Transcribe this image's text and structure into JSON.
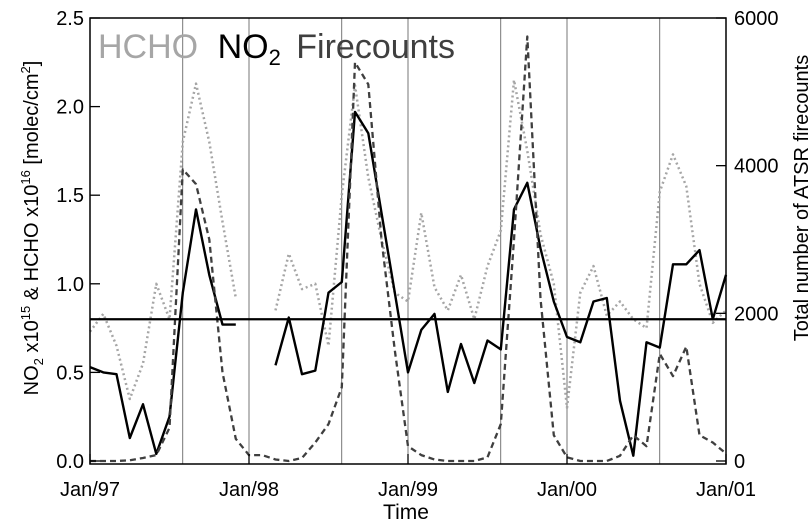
{
  "chart_data": {
    "type": "line",
    "legend": {
      "position": "top-left",
      "items": [
        {
          "text": "HCHO",
          "color": "#a6a6a6"
        },
        {
          "text": "NO",
          "sub": "2",
          "color": "#000000"
        },
        {
          "text": "Firecounts",
          "color": "#3f3f3f"
        }
      ]
    },
    "xlabel": "Time",
    "ylabel_left": {
      "p1": "NO",
      "s1": "2",
      "p2": " x10",
      "e1": "15",
      "p3": " &  HCHO x10",
      "e2": "16",
      "p4": " [molec/cm",
      "e3": "2",
      "p5": "]"
    },
    "ylabel_right": "Total number of ATSR firecounts",
    "x_ticks": [
      "Jan/97",
      "Jan/98",
      "Jan/99",
      "Jan/00",
      "Jan/01"
    ],
    "x_range": [
      "1997-01",
      "2001-01"
    ],
    "y_left": {
      "range": [
        0,
        2.5
      ],
      "ticks": [
        "0.0",
        "0.5",
        "1.0",
        "1.5",
        "2.0",
        "2.5"
      ]
    },
    "y_right": {
      "range": [
        0,
        6000
      ],
      "ticks": [
        "0",
        "2000",
        "4000",
        "6000"
      ]
    },
    "reference_line": {
      "axis": "left",
      "value": 0.8
    },
    "vertical_markers": [
      "1997-08",
      "1998-01",
      "1998-08",
      "1999-01",
      "1999-08",
      "2000-01",
      "2000-08",
      "2001-01"
    ],
    "series": [
      {
        "name": "HCHO",
        "axis": "left",
        "style": "dotted",
        "color": "#a6a6a6",
        "x": [
          "1997-01",
          "1997-02",
          "1997-03",
          "1997-04",
          "1997-05",
          "1997-06",
          "1997-07",
          "1997-08",
          "1997-09",
          "1997-10",
          "1997-11",
          "1997-12",
          "1998-01",
          "1998-02",
          "1998-03",
          "1998-04",
          "1998-05",
          "1998-06",
          "1998-07",
          "1998-08",
          "1998-09",
          "1998-10",
          "1998-11",
          "1998-12",
          "1999-01",
          "1999-02",
          "1999-03",
          "1999-04",
          "1999-05",
          "1999-06",
          "1999-07",
          "1999-08",
          "1999-09",
          "1999-10",
          "1999-11",
          "1999-12",
          "2000-01",
          "2000-02",
          "2000-03",
          "2000-04",
          "2000-05",
          "2000-06",
          "2000-07",
          "2000-08",
          "2000-09",
          "2000-10",
          "2000-11",
          "2000-12",
          "2001-01"
        ],
        "values": [
          0.73,
          0.83,
          0.65,
          0.35,
          0.55,
          1.0,
          0.8,
          1.8,
          2.13,
          1.8,
          1.35,
          0.92,
          null,
          null,
          0.85,
          1.17,
          0.97,
          1.0,
          0.65,
          1.5,
          2.12,
          1.6,
          1.25,
          0.95,
          0.9,
          1.4,
          0.98,
          0.85,
          1.05,
          0.8,
          1.1,
          1.3,
          2.15,
          1.75,
          1.28,
          1.0,
          0.3,
          0.95,
          1.1,
          0.82,
          0.9,
          0.8,
          0.75,
          1.52,
          1.73,
          1.55,
          1.0,
          0.78,
          0.85
        ]
      },
      {
        "name": "NO2",
        "axis": "left",
        "style": "solid",
        "color": "#000000",
        "x": [
          "1997-01",
          "1997-02",
          "1997-03",
          "1997-04",
          "1997-05",
          "1997-06",
          "1997-07",
          "1997-08",
          "1997-09",
          "1997-10",
          "1997-11",
          "1997-12",
          "1998-01",
          "1998-02",
          "1998-03",
          "1998-04",
          "1998-05",
          "1998-06",
          "1998-07",
          "1998-08",
          "1998-09",
          "1998-10",
          "1998-11",
          "1998-12",
          "1999-01",
          "1999-02",
          "1999-03",
          "1999-04",
          "1999-05",
          "1999-06",
          "1999-07",
          "1999-08",
          "1999-09",
          "1999-10",
          "1999-11",
          "1999-12",
          "2000-01",
          "2000-02",
          "2000-03",
          "2000-04",
          "2000-05",
          "2000-06",
          "2000-07",
          "2000-08",
          "2000-09",
          "2000-10",
          "2000-11",
          "2000-12",
          "2001-01"
        ],
        "values": [
          0.53,
          0.5,
          0.49,
          0.13,
          0.32,
          0.04,
          0.25,
          0.95,
          1.42,
          1.05,
          0.77,
          0.77,
          null,
          null,
          0.54,
          0.81,
          0.49,
          0.51,
          0.95,
          1.01,
          1.97,
          1.85,
          1.4,
          0.95,
          0.5,
          0.74,
          0.83,
          0.39,
          0.66,
          0.44,
          0.68,
          0.63,
          1.42,
          1.57,
          1.2,
          0.9,
          0.7,
          0.67,
          0.9,
          0.92,
          0.34,
          0.03,
          0.67,
          0.64,
          1.11,
          1.11,
          1.19,
          0.8,
          1.05
        ]
      },
      {
        "name": "Firecounts",
        "axis": "right",
        "style": "dashed",
        "color": "#3f3f3f",
        "x": [
          "1997-01",
          "1997-02",
          "1997-03",
          "1997-04",
          "1997-05",
          "1997-06",
          "1997-07",
          "1997-08",
          "1997-09",
          "1997-10",
          "1997-11",
          "1997-12",
          "1998-01",
          "1998-02",
          "1998-03",
          "1998-04",
          "1998-05",
          "1998-06",
          "1998-07",
          "1998-08",
          "1998-09",
          "1998-10",
          "1998-11",
          "1998-12",
          "1999-01",
          "1999-02",
          "1999-03",
          "1999-04",
          "1999-05",
          "1999-06",
          "1999-07",
          "1999-08",
          "1999-09",
          "1999-10",
          "1999-11",
          "1999-12",
          "2000-01",
          "2000-02",
          "2000-03",
          "2000-04",
          "2000-05",
          "2000-06",
          "2000-07",
          "2000-08",
          "2000-09",
          "2000-10",
          "2000-11",
          "2000-12",
          "2001-01"
        ],
        "values": [
          0,
          0,
          0,
          10,
          40,
          80,
          450,
          3950,
          3750,
          3000,
          1200,
          300,
          80,
          80,
          20,
          0,
          40,
          250,
          500,
          1000,
          5400,
          5100,
          3000,
          1500,
          200,
          80,
          20,
          0,
          0,
          0,
          50,
          500,
          3000,
          5750,
          2200,
          350,
          50,
          0,
          0,
          0,
          70,
          350,
          200,
          1450,
          1150,
          1550,
          350,
          250,
          100
        ]
      }
    ]
  }
}
